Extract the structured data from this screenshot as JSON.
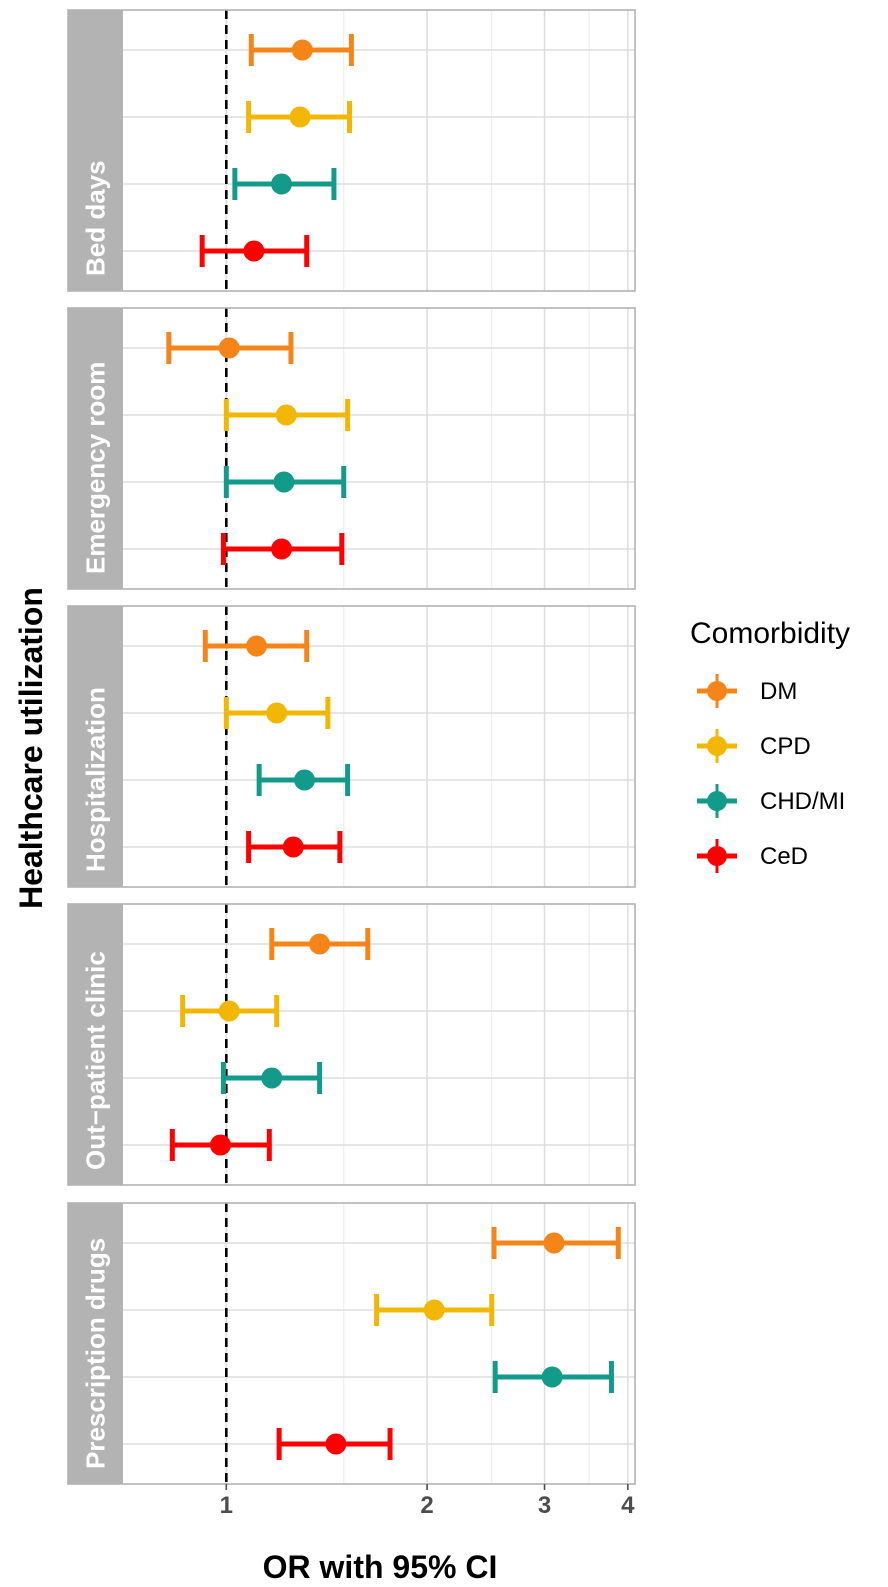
{
  "chart_data": {
    "type": "scatter",
    "subtype": "forest-plot",
    "x_scale": "log",
    "xlim": [
      0.7,
      4.1
    ],
    "x_ticks": [
      1,
      2,
      3,
      4
    ],
    "x_tick_labels": [
      "1",
      "2",
      "3",
      "4"
    ],
    "reference_line": 1,
    "xlabel": "OR with 95% CI",
    "ylabel": "Healthcare utilization",
    "grid": true,
    "legend": {
      "title": "Comorbidity",
      "position": "right",
      "entries": [
        "DM",
        "CPD",
        "CHD/MI",
        "CeD"
      ]
    },
    "colors": {
      "DM": "#F58518",
      "CPD": "#F2B705",
      "CHD/MI": "#129B8B",
      "CeD": "#FF0000"
    },
    "panels": [
      {
        "name": "Bed days",
        "rows": [
          {
            "series": "DM",
            "or": 1.3,
            "lo": 1.09,
            "hi": 1.54
          },
          {
            "series": "CPD",
            "or": 1.29,
            "lo": 1.08,
            "hi": 1.53
          },
          {
            "series": "CHD/MI",
            "or": 1.21,
            "lo": 1.03,
            "hi": 1.45
          },
          {
            "series": "CeD",
            "or": 1.1,
            "lo": 0.92,
            "hi": 1.32
          }
        ]
      },
      {
        "name": "Emergency room",
        "rows": [
          {
            "series": "DM",
            "or": 1.01,
            "lo": 0.82,
            "hi": 1.25
          },
          {
            "series": "CPD",
            "or": 1.23,
            "lo": 1.0,
            "hi": 1.52
          },
          {
            "series": "CHD/MI",
            "or": 1.22,
            "lo": 1.0,
            "hi": 1.5
          },
          {
            "series": "CeD",
            "or": 1.21,
            "lo": 0.99,
            "hi": 1.49
          }
        ]
      },
      {
        "name": "Hospitalization",
        "rows": [
          {
            "series": "DM",
            "or": 1.11,
            "lo": 0.93,
            "hi": 1.32
          },
          {
            "series": "CPD",
            "or": 1.19,
            "lo": 1.0,
            "hi": 1.42
          },
          {
            "series": "CHD/MI",
            "or": 1.31,
            "lo": 1.12,
            "hi": 1.52
          },
          {
            "series": "CeD",
            "or": 1.26,
            "lo": 1.08,
            "hi": 1.48
          }
        ]
      },
      {
        "name": "Out−patient clinic",
        "rows": [
          {
            "series": "DM",
            "or": 1.38,
            "lo": 1.17,
            "hi": 1.63
          },
          {
            "series": "CPD",
            "or": 1.01,
            "lo": 0.86,
            "hi": 1.19
          },
          {
            "series": "CHD/MI",
            "or": 1.17,
            "lo": 0.99,
            "hi": 1.38
          },
          {
            "series": "CeD",
            "or": 0.98,
            "lo": 0.83,
            "hi": 1.16
          }
        ]
      },
      {
        "name": "Prescription drugs",
        "rows": [
          {
            "series": "DM",
            "or": 3.1,
            "lo": 2.52,
            "hi": 3.87
          },
          {
            "series": "CPD",
            "or": 2.05,
            "lo": 1.68,
            "hi": 2.5
          },
          {
            "series": "CHD/MI",
            "or": 3.08,
            "lo": 2.53,
            "hi": 3.78
          },
          {
            "series": "CeD",
            "or": 1.46,
            "lo": 1.2,
            "hi": 1.76
          }
        ]
      }
    ]
  }
}
